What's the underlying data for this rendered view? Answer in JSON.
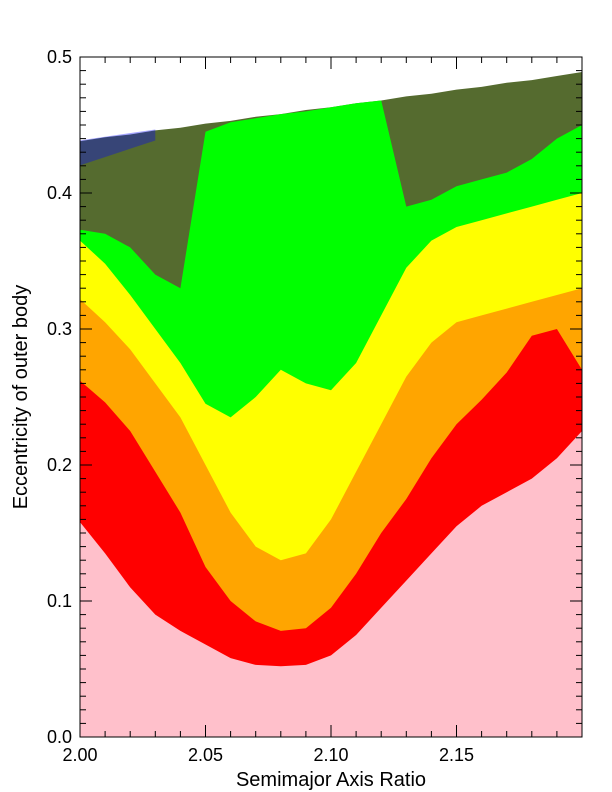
{
  "chart_data": {
    "type": "heatmap",
    "title": "",
    "xlabel": "Semimajor Axis Ratio",
    "ylabel": "Eccentricity of outer body",
    "xlim": [
      2.0,
      2.2
    ],
    "ylim": [
      0.0,
      0.5
    ],
    "x_ticks": [
      2.0,
      2.05,
      2.1,
      2.15
    ],
    "x_tick_labels": [
      "2.00",
      "2.05",
      "2.10",
      "2.15"
    ],
    "y_ticks": [
      0.0,
      0.1,
      0.2,
      0.3,
      0.4,
      0.5
    ],
    "y_tick_labels": [
      "0.0",
      "0.1",
      "0.2",
      "0.3",
      "0.4",
      "0.5"
    ],
    "grid": false,
    "legend": "none",
    "background_color": "#ffffff",
    "levels": [
      {
        "color": "#ffc0cb"
      },
      {
        "color": "#ff0000"
      },
      {
        "color": "#ffa500"
      },
      {
        "color": "#ffff00"
      },
      {
        "color": "#00ff00"
      },
      {
        "color": "#556b2f"
      },
      {
        "color": "#0000ff"
      }
    ],
    "boundaries": {
      "x": [
        2.0,
        2.01,
        2.02,
        2.03,
        2.04,
        2.05,
        2.06,
        2.07,
        2.08,
        2.09,
        2.1,
        2.11,
        2.12,
        2.13,
        2.14,
        2.15,
        2.16,
        2.17,
        2.18,
        2.19,
        2.2
      ],
      "top": [
        0.438,
        0.441,
        0.443,
        0.446,
        0.448,
        0.451,
        0.453,
        0.456,
        0.458,
        0.461,
        0.463,
        0.466,
        0.468,
        0.471,
        0.473,
        0.476,
        0.478,
        0.481,
        0.483,
        0.486,
        0.489
      ],
      "pink_top": [
        0.158,
        0.135,
        0.11,
        0.09,
        0.078,
        0.068,
        0.058,
        0.053,
        0.052,
        0.053,
        0.06,
        0.075,
        0.095,
        0.115,
        0.135,
        0.155,
        0.17,
        0.18,
        0.19,
        0.205,
        0.225
      ],
      "red_top": [
        0.262,
        0.246,
        0.225,
        0.195,
        0.165,
        0.125,
        0.1,
        0.085,
        0.078,
        0.08,
        0.095,
        0.12,
        0.15,
        0.175,
        0.205,
        0.23,
        0.248,
        0.268,
        0.295,
        0.3,
        0.27
      ],
      "orange_top": [
        0.322,
        0.305,
        0.285,
        0.26,
        0.235,
        0.2,
        0.165,
        0.14,
        0.13,
        0.135,
        0.16,
        0.195,
        0.23,
        0.265,
        0.29,
        0.305,
        0.31,
        0.315,
        0.32,
        0.325,
        0.33
      ],
      "yellow_top": [
        0.365,
        0.348,
        0.325,
        0.3,
        0.275,
        0.245,
        0.235,
        0.25,
        0.27,
        0.26,
        0.255,
        0.275,
        0.31,
        0.345,
        0.365,
        0.375,
        0.38,
        0.385,
        0.39,
        0.395,
        0.4
      ],
      "green_top": [
        0.373,
        0.37,
        0.36,
        0.34,
        0.33,
        0.445,
        0.452,
        0.455,
        0.458,
        0.46,
        0.463,
        0.466,
        0.468,
        0.39,
        0.395,
        0.405,
        0.41,
        0.415,
        0.425,
        0.44,
        0.45
      ]
    },
    "blue_region": {
      "x_range": [
        2.0,
        2.03
      ],
      "y_range": [
        0.415,
        0.446
      ]
    }
  }
}
